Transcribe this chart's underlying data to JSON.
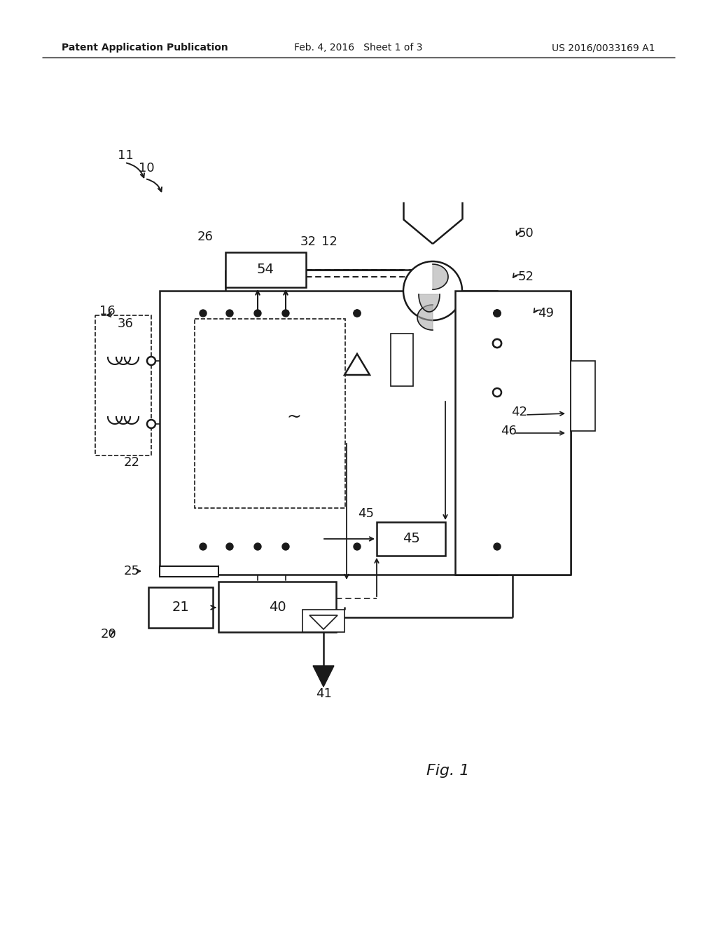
{
  "bg_color": "#ffffff",
  "text_color": "#1a1a1a",
  "line_color": "#1a1a1a",
  "header_left": "Patent Application Publication",
  "header_mid": "Feb. 4, 2016   Sheet 1 of 3",
  "header_right": "US 2016/0033169 A1",
  "fig_label": "Fig. 1"
}
